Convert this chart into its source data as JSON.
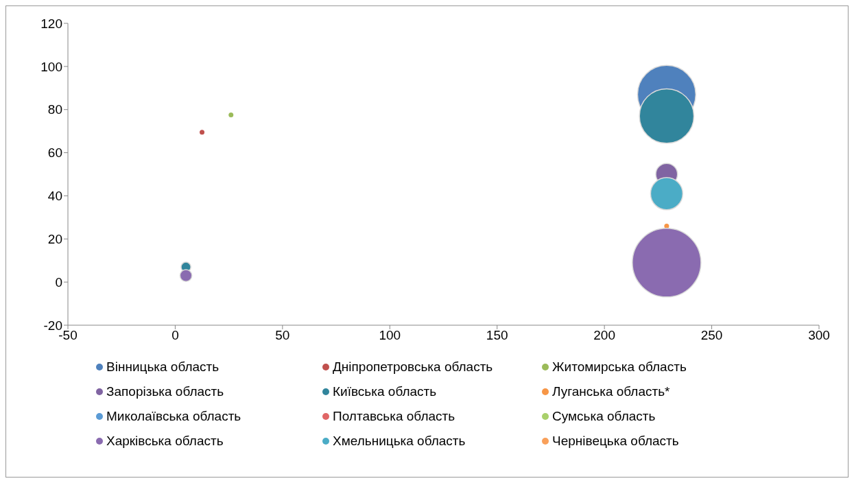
{
  "chart_data": {
    "type": "bubble",
    "xlim": [
      -50,
      300
    ],
    "xticks": [
      -50,
      0,
      50,
      100,
      150,
      200,
      250,
      300
    ],
    "ylim": [
      -20,
      120
    ],
    "yticks": [
      -20,
      0,
      20,
      40,
      60,
      80,
      100,
      120
    ],
    "grid": false,
    "legend": "bottom",
    "series": [
      {
        "name": "Вінницька область",
        "color": "#4f81bd",
        "x": [
          229
        ],
        "values": [
          87
        ],
        "sizes": [
          0.72
        ]
      },
      {
        "name": "Дніпропетровська область",
        "color": "#c0504d",
        "x": [
          12.5
        ],
        "values": [
          69.5
        ],
        "sizes": [
          0.003
        ]
      },
      {
        "name": "Житомирська область",
        "color": "#9bbb59",
        "x": [
          26
        ],
        "values": [
          77.5
        ],
        "sizes": [
          0.003
        ]
      },
      {
        "name": "Запорізька область",
        "color": "#8064a2",
        "x": [
          229
        ],
        "values": [
          50
        ],
        "sizes": [
          0.1
        ]
      },
      {
        "name": "Київська область",
        "color": "#31859c",
        "x": [
          229,
          5
        ],
        "values": [
          77,
          7
        ],
        "sizes": [
          0.63,
          0.02
        ]
      },
      {
        "name": "Луганська область*",
        "color": "#f79646",
        "x": [
          229
        ],
        "values": [
          26
        ],
        "sizes": [
          0.003
        ]
      },
      {
        "name": "Миколаївська область",
        "color": "#5b9bd5"
      },
      {
        "name": "Полтавська область",
        "color": "#e06666"
      },
      {
        "name": "Сумська область",
        "color": "#a9d06b"
      },
      {
        "name": "Харківська область",
        "color": "#8a6bb0",
        "x": [
          229,
          5
        ],
        "values": [
          9,
          3
        ],
        "sizes": [
          1,
          0.03
        ]
      },
      {
        "name": "Хмельницька область",
        "color": "#4bacc6",
        "x": [
          229
        ],
        "values": [
          41
        ],
        "sizes": [
          0.22
        ]
      },
      {
        "name": "Чернівецька область",
        "color": "#f9a05a"
      }
    ]
  }
}
